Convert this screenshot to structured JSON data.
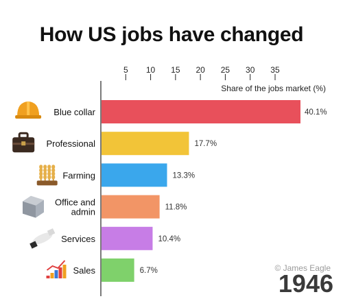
{
  "title": "How US jobs have changed",
  "credit": "© James Eagle",
  "year": "1946",
  "chart_data": {
    "type": "bar",
    "orientation": "horizontal",
    "title": "How US jobs have changed",
    "xlabel": "Share of the jobs market (%)",
    "ylabel": "",
    "xlim": [
      0,
      40.1
    ],
    "xticks": [
      5,
      10,
      15,
      20,
      25,
      30,
      35
    ],
    "categories": [
      "Blue collar",
      "Professional",
      "Farming",
      "Office and admin",
      "Services",
      "Sales"
    ],
    "values": [
      40.1,
      17.7,
      13.3,
      11.8,
      10.4,
      6.7
    ],
    "value_labels": [
      "40.1%",
      "17.7%",
      "13.3%",
      "11.8%",
      "10.4%",
      "6.7%"
    ],
    "colors": [
      "#e8505b",
      "#f2c438",
      "#3aa7ec",
      "#f29566",
      "#c77de6",
      "#7fd16b"
    ],
    "icons": [
      "hard-hat-icon",
      "briefcase-icon",
      "wheat-icon",
      "filing-cabinet-icon",
      "handshake-icon",
      "sales-chart-icon"
    ],
    "grid": false,
    "axis_position": "top"
  }
}
